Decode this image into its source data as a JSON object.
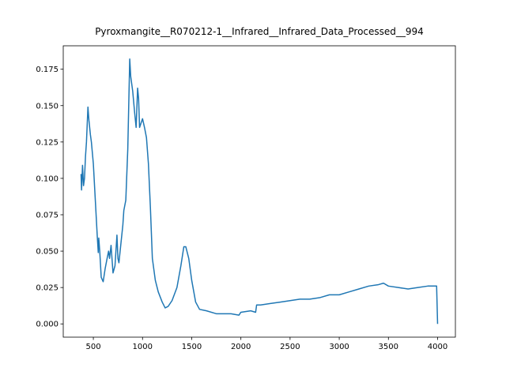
{
  "chart_data": {
    "type": "line",
    "title": "Pyroxmangite__R070212-1__Infrared__Infrared_Data_Processed__994",
    "x": [
      375,
      380,
      390,
      400,
      410,
      420,
      430,
      445,
      455,
      470,
      480,
      500,
      520,
      540,
      550,
      555,
      565,
      580,
      600,
      620,
      640,
      655,
      665,
      680,
      700,
      720,
      740,
      750,
      760,
      780,
      800,
      810,
      830,
      850,
      870,
      880,
      900,
      920,
      935,
      950,
      960,
      970,
      985,
      1000,
      1020,
      1040,
      1060,
      1080,
      1100,
      1130,
      1160,
      1200,
      1230,
      1260,
      1300,
      1350,
      1390,
      1420,
      1440,
      1470,
      1500,
      1540,
      1580,
      1650,
      1750,
      1800,
      1900,
      1980,
      2000,
      2100,
      2150,
      2160,
      2200,
      2300,
      2400,
      2500,
      2600,
      2700,
      2800,
      2900,
      3000,
      3100,
      3200,
      3300,
      3400,
      3450,
      3500,
      3600,
      3700,
      3800,
      3900,
      3990,
      4000
    ],
    "series": [
      {
        "color": "#1f77b4",
        "values": [
          0.103,
          0.092,
          0.109,
          0.095,
          0.1,
          0.115,
          0.125,
          0.149,
          0.14,
          0.13,
          0.125,
          0.11,
          0.085,
          0.06,
          0.049,
          0.059,
          0.05,
          0.032,
          0.029,
          0.038,
          0.045,
          0.05,
          0.045,
          0.054,
          0.035,
          0.04,
          0.061,
          0.045,
          0.042,
          0.055,
          0.068,
          0.078,
          0.085,
          0.12,
          0.182,
          0.17,
          0.16,
          0.145,
          0.135,
          0.162,
          0.155,
          0.135,
          0.138,
          0.141,
          0.135,
          0.128,
          0.11,
          0.08,
          0.045,
          0.03,
          0.022,
          0.015,
          0.011,
          0.012,
          0.016,
          0.025,
          0.04,
          0.053,
          0.053,
          0.045,
          0.03,
          0.015,
          0.01,
          0.009,
          0.007,
          0.007,
          0.007,
          0.006,
          0.008,
          0.009,
          0.008,
          0.013,
          0.013,
          0.014,
          0.015,
          0.016,
          0.017,
          0.017,
          0.018,
          0.02,
          0.02,
          0.022,
          0.024,
          0.026,
          0.027,
          0.028,
          0.026,
          0.025,
          0.024,
          0.025,
          0.026,
          0.026,
          0.0
        ]
      }
    ],
    "xlim": [
      194,
      4181
    ],
    "ylim": [
      -0.0091,
      0.1911
    ],
    "xticks": [
      500,
      1000,
      1500,
      2000,
      2500,
      3000,
      3500,
      4000
    ],
    "yticks": [
      {
        "value": 0,
        "label": "0.000"
      },
      0.025,
      {
        "value": 0.05,
        "label": "0.050"
      },
      0.075,
      {
        "value": 0.1,
        "label": "0.100"
      },
      0.125,
      {
        "value": 0.15,
        "label": "0.150"
      },
      0.175
    ]
  }
}
